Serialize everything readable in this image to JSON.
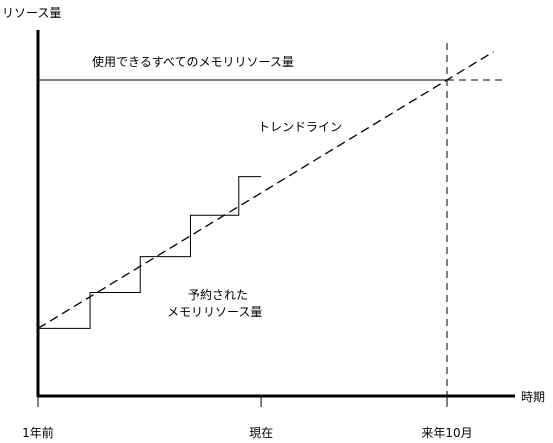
{
  "chart_data": {
    "type": "line",
    "ylabel": "リソース量",
    "xlabel": "時期",
    "x_ticks": [
      "1年前",
      "現在",
      "来年10月"
    ],
    "x_tick_positions": [
      0,
      12,
      22
    ],
    "xlim": [
      0,
      22
    ],
    "ylim": [
      0,
      100
    ],
    "capacity": {
      "label": "使用できるすべてのメモリリソース量",
      "value": 100
    },
    "trend": {
      "label": "トレンドライン",
      "points": [
        [
          0,
          10
        ],
        [
          22,
          100
        ]
      ]
    },
    "reserved": {
      "label_lines": [
        "予約された",
        "メモリリソース量"
      ],
      "steps": [
        {
          "x0": 0,
          "x1": 2.8,
          "y": 10
        },
        {
          "x0": 2.8,
          "x1": 5.5,
          "y": 23
        },
        {
          "x0": 5.5,
          "x1": 8.2,
          "y": 36
        },
        {
          "x0": 8.2,
          "x1": 10.8,
          "y": 51
        },
        {
          "x0": 10.8,
          "x1": 12,
          "y": 65
        }
      ]
    },
    "grid": false,
    "legend": "none"
  }
}
